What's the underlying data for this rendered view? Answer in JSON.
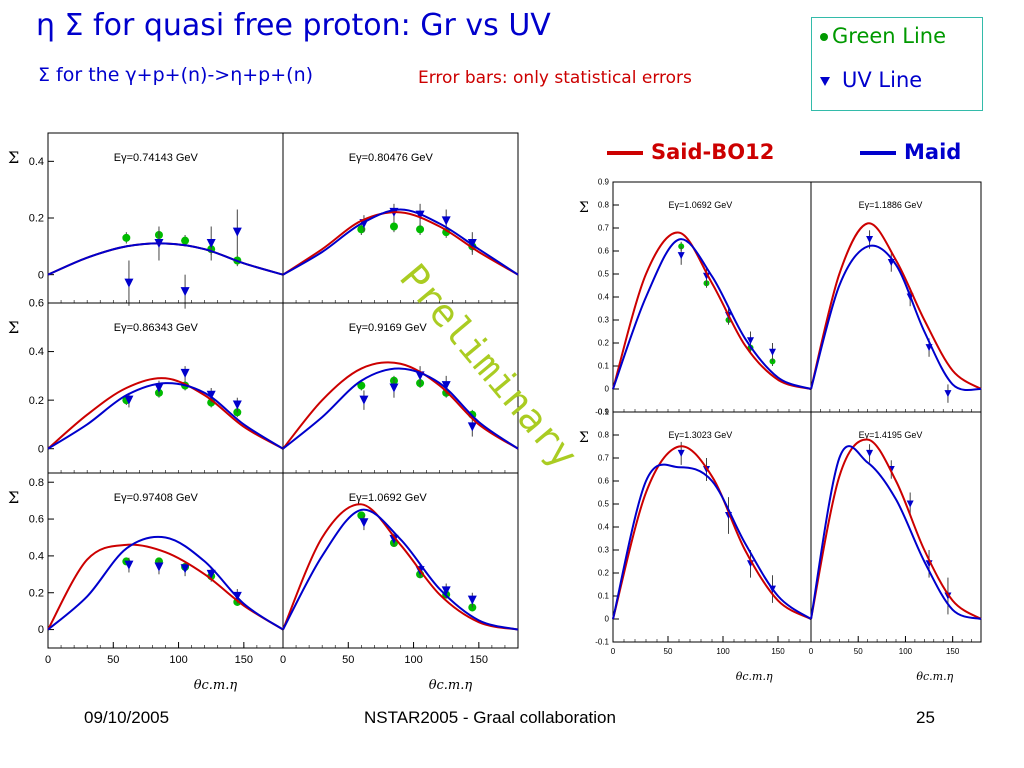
{
  "title": "η  Σ for quasi free proton:  Gr vs UV",
  "subtitle": "Σ for the γ+p+(n)->η+p+(n)",
  "error_note": "Error bars: only statistical errors",
  "legend": {
    "green_label": "Green Line",
    "uv_label": "UV Line"
  },
  "models": {
    "said": "Said-BO12",
    "maid": "Maid"
  },
  "watermark": "Preliminary",
  "footer": {
    "date": "09/10/2005",
    "conference": "NSTAR2005 - Graal collaboration",
    "page": "25"
  },
  "colors": {
    "green": "#00bb00",
    "uv": "#0000cc",
    "said": "#cc0000",
    "maid": "#0000cc"
  },
  "chart_data": [
    {
      "type": "scatter",
      "title": "Eγ=0.74143 GeV",
      "xlabel": "θc.m.η",
      "ylabel": "Σ",
      "xlim": [
        0,
        180
      ],
      "ylim": [
        -0.1,
        0.5
      ],
      "yticks": [
        "0",
        "0.2",
        "0.4"
      ],
      "xticks": [],
      "series": [
        {
          "name": "Green Line",
          "x": [
            60,
            85,
            105,
            125,
            145
          ],
          "y": [
            0.13,
            0.14,
            0.12,
            0.09,
            0.05
          ],
          "err": [
            0.02,
            0.02,
            0.02,
            0.02,
            0.02
          ]
        },
        {
          "name": "UV Line",
          "x": [
            62,
            85,
            105,
            125,
            145
          ],
          "y": [
            -0.03,
            0.11,
            -0.06,
            0.11,
            0.15
          ],
          "err": [
            0.08,
            0.06,
            0.06,
            0.06,
            0.08
          ]
        },
        {
          "name": "Said-BO12",
          "x": [
            0,
            30,
            60,
            90,
            120,
            150,
            180
          ],
          "y": [
            0,
            0.06,
            0.1,
            0.11,
            0.09,
            0.04,
            0
          ]
        },
        {
          "name": "Maid",
          "x": [
            0,
            30,
            60,
            90,
            120,
            150,
            180
          ],
          "y": [
            0,
            0.06,
            0.1,
            0.11,
            0.09,
            0.04,
            0
          ]
        }
      ]
    },
    {
      "type": "scatter",
      "title": "Eγ=0.80476 GeV",
      "xlabel": "θc.m.η",
      "ylabel": "Σ",
      "xlim": [
        0,
        180
      ],
      "ylim": [
        -0.1,
        0.5
      ],
      "yticks": [],
      "xticks": [],
      "series": [
        {
          "name": "Green Line",
          "x": [
            60,
            85,
            105,
            125,
            145
          ],
          "y": [
            0.16,
            0.17,
            0.16,
            0.15,
            0.1
          ],
          "err": [
            0.02,
            0.02,
            0.02,
            0.02,
            0.02
          ]
        },
        {
          "name": "UV Line",
          "x": [
            62,
            85,
            105,
            125,
            145
          ],
          "y": [
            0.18,
            0.22,
            0.21,
            0.19,
            0.11
          ],
          "err": [
            0.03,
            0.03,
            0.04,
            0.04,
            0.04
          ]
        },
        {
          "name": "Said-BO12",
          "x": [
            0,
            30,
            60,
            90,
            120,
            150,
            180
          ],
          "y": [
            0,
            0.09,
            0.19,
            0.22,
            0.17,
            0.08,
            0
          ]
        },
        {
          "name": "Maid",
          "x": [
            0,
            30,
            60,
            90,
            120,
            150,
            180
          ],
          "y": [
            0,
            0.08,
            0.18,
            0.23,
            0.18,
            0.09,
            0
          ]
        }
      ]
    },
    {
      "type": "scatter",
      "title": "Eγ=0.86343 GeV",
      "xlabel": "θc.m.η",
      "ylabel": "Σ",
      "xlim": [
        0,
        180
      ],
      "ylim": [
        -0.1,
        0.6
      ],
      "yticks": [
        "0",
        "0.2",
        "0.4",
        "0.6"
      ],
      "xticks": [],
      "series": [
        {
          "name": "Green Line",
          "x": [
            60,
            85,
            105,
            125,
            145
          ],
          "y": [
            0.2,
            0.23,
            0.26,
            0.19,
            0.15
          ],
          "err": [
            0.02,
            0.02,
            0.02,
            0.02,
            0.02
          ]
        },
        {
          "name": "UV Line",
          "x": [
            62,
            85,
            105,
            125,
            145
          ],
          "y": [
            0.2,
            0.25,
            0.31,
            0.22,
            0.18
          ],
          "err": [
            0.03,
            0.03,
            0.03,
            0.03,
            0.03
          ]
        },
        {
          "name": "Said-BO12",
          "x": [
            0,
            30,
            60,
            90,
            120,
            150,
            180
          ],
          "y": [
            0,
            0.14,
            0.25,
            0.29,
            0.22,
            0.09,
            0
          ]
        },
        {
          "name": "Maid",
          "x": [
            0,
            30,
            60,
            90,
            120,
            150,
            180
          ],
          "y": [
            0,
            0.1,
            0.22,
            0.27,
            0.23,
            0.1,
            0
          ]
        }
      ]
    },
    {
      "type": "scatter",
      "title": "Eγ=0.9169 GeV",
      "xlabel": "θc.m.η",
      "ylabel": "Σ",
      "xlim": [
        0,
        180
      ],
      "ylim": [
        -0.1,
        0.6
      ],
      "yticks": [],
      "xticks": [],
      "series": [
        {
          "name": "Green Line",
          "x": [
            60,
            85,
            105,
            125,
            145
          ],
          "y": [
            0.26,
            0.28,
            0.27,
            0.23,
            0.14
          ],
          "err": [
            0.02,
            0.02,
            0.02,
            0.02,
            0.02
          ]
        },
        {
          "name": "UV Line",
          "x": [
            62,
            85,
            105,
            125,
            145
          ],
          "y": [
            0.2,
            0.25,
            0.3,
            0.26,
            0.09
          ],
          "err": [
            0.04,
            0.04,
            0.04,
            0.04,
            0.04
          ]
        },
        {
          "name": "Said-BO12",
          "x": [
            0,
            30,
            60,
            90,
            120,
            150,
            180
          ],
          "y": [
            0,
            0.2,
            0.33,
            0.35,
            0.26,
            0.1,
            0
          ]
        },
        {
          "name": "Maid",
          "x": [
            0,
            30,
            60,
            90,
            120,
            150,
            180
          ],
          "y": [
            0,
            0.13,
            0.28,
            0.33,
            0.27,
            0.11,
            0
          ]
        }
      ]
    },
    {
      "type": "scatter",
      "title": "Eγ=0.97408 GeV",
      "xlabel": "θc.m.η",
      "ylabel": "Σ",
      "xlim": [
        0,
        180
      ],
      "ylim": [
        -0.1,
        0.85
      ],
      "yticks": [
        "0",
        "0.2",
        "0.4",
        "0.6",
        "0.8"
      ],
      "xticks": [
        "0",
        "50",
        "100",
        "150"
      ],
      "series": [
        {
          "name": "Green Line",
          "x": [
            60,
            85,
            105,
            125,
            145
          ],
          "y": [
            0.37,
            0.37,
            0.34,
            0.29,
            0.15
          ],
          "err": [
            0.02,
            0.02,
            0.02,
            0.02,
            0.02
          ]
        },
        {
          "name": "UV Line",
          "x": [
            62,
            85,
            105,
            125,
            145
          ],
          "y": [
            0.35,
            0.34,
            0.33,
            0.3,
            0.18
          ],
          "err": [
            0.04,
            0.04,
            0.04,
            0.04,
            0.04
          ]
        },
        {
          "name": "Said-BO12",
          "x": [
            0,
            30,
            60,
            90,
            120,
            150,
            180
          ],
          "y": [
            0,
            0.38,
            0.46,
            0.42,
            0.3,
            0.13,
            0
          ]
        },
        {
          "name": "Maid",
          "x": [
            0,
            30,
            60,
            90,
            120,
            150,
            180
          ],
          "y": [
            0,
            0.18,
            0.44,
            0.5,
            0.37,
            0.14,
            0
          ]
        }
      ]
    },
    {
      "type": "scatter",
      "title": "Eγ=1.0692 GeV",
      "xlabel": "θc.m.η",
      "ylabel": "Σ",
      "xlim": [
        0,
        180
      ],
      "ylim": [
        -0.1,
        0.85
      ],
      "yticks": [],
      "xticks": [
        "0",
        "50",
        "100",
        "150"
      ],
      "series": [
        {
          "name": "Green Line",
          "x": [
            60,
            85,
            105,
            125,
            145
          ],
          "y": [
            0.62,
            0.47,
            0.3,
            0.19,
            0.12
          ],
          "err": [
            0.02,
            0.02,
            0.02,
            0.02,
            0.02
          ]
        },
        {
          "name": "UV Line",
          "x": [
            62,
            85,
            105,
            125,
            145
          ],
          "y": [
            0.58,
            0.49,
            0.32,
            0.21,
            0.16
          ],
          "err": [
            0.04,
            0.04,
            0.04,
            0.04,
            0.04
          ]
        },
        {
          "name": "Said-BO12",
          "x": [
            0,
            30,
            60,
            90,
            120,
            150,
            180
          ],
          "y": [
            0,
            0.5,
            0.68,
            0.46,
            0.19,
            0.04,
            0
          ]
        },
        {
          "name": "Maid",
          "x": [
            0,
            30,
            60,
            90,
            120,
            150,
            180
          ],
          "y": [
            0,
            0.4,
            0.65,
            0.49,
            0.22,
            0.05,
            0
          ]
        }
      ]
    },
    {
      "type": "scatter",
      "title": "Eγ=1.0692 GeV",
      "xlabel": "θc.m.η",
      "ylabel": "Σ",
      "xlim": [
        0,
        180
      ],
      "ylim": [
        -0.1,
        0.9
      ],
      "yticks": [
        "-0.1",
        "0",
        "0.1",
        "0.2",
        "0.3",
        "0.4",
        "0.5",
        "0.6",
        "0.7",
        "0.8",
        "0.9"
      ],
      "xticks": [],
      "series": [
        {
          "name": "Green Line",
          "x": [
            62,
            85,
            105,
            125,
            145
          ],
          "y": [
            0.62,
            0.46,
            0.3,
            0.18,
            0.12
          ],
          "err": [
            0.02,
            0.02,
            0.02,
            0.02,
            0.02
          ]
        },
        {
          "name": "UV Line",
          "x": [
            62,
            85,
            105,
            125,
            145
          ],
          "y": [
            0.58,
            0.49,
            0.32,
            0.21,
            0.16
          ],
          "err": [
            0.04,
            0.04,
            0.04,
            0.04,
            0.04
          ]
        },
        {
          "name": "Said-BO12",
          "x": [
            0,
            30,
            60,
            90,
            120,
            150,
            180
          ],
          "y": [
            0,
            0.5,
            0.68,
            0.46,
            0.19,
            0.04,
            0
          ]
        },
        {
          "name": "Maid",
          "x": [
            0,
            30,
            60,
            90,
            120,
            150,
            180
          ],
          "y": [
            0,
            0.4,
            0.65,
            0.49,
            0.22,
            0.05,
            0
          ]
        }
      ]
    },
    {
      "type": "scatter",
      "title": "Eγ=1.1886 GeV",
      "xlabel": "θc.m.η",
      "ylabel": "Σ",
      "xlim": [
        0,
        180
      ],
      "ylim": [
        -0.1,
        0.9
      ],
      "yticks": [],
      "xticks": [],
      "series": [
        {
          "name": "UV Line",
          "x": [
            62,
            85,
            105,
            125,
            145
          ],
          "y": [
            0.65,
            0.55,
            0.4,
            0.18,
            -0.02
          ],
          "err": [
            0.04,
            0.04,
            0.04,
            0.04,
            0.04
          ]
        },
        {
          "name": "Said-BO12",
          "x": [
            0,
            30,
            60,
            90,
            120,
            150,
            180
          ],
          "y": [
            0,
            0.5,
            0.72,
            0.56,
            0.3,
            0.08,
            0
          ]
        },
        {
          "name": "Maid",
          "x": [
            0,
            30,
            60,
            90,
            120,
            150,
            180
          ],
          "y": [
            0,
            0.45,
            0.62,
            0.54,
            0.25,
            0.02,
            0
          ]
        }
      ]
    },
    {
      "type": "scatter",
      "title": "Eγ=1.3023 GeV",
      "xlabel": "θc.m.η",
      "ylabel": "Σ",
      "xlim": [
        0,
        180
      ],
      "ylim": [
        -0.1,
        0.9
      ],
      "yticks": [
        "-0.1",
        "0",
        "0.1",
        "0.2",
        "0.3",
        "0.4",
        "0.5",
        "0.6",
        "0.7",
        "0.8",
        "0.9"
      ],
      "xticks": [
        "0",
        "50",
        "100",
        "150"
      ],
      "series": [
        {
          "name": "UV Line",
          "x": [
            62,
            85,
            105,
            125,
            145
          ],
          "y": [
            0.72,
            0.65,
            0.45,
            0.24,
            0.13
          ],
          "err": [
            0.05,
            0.05,
            0.08,
            0.06,
            0.06
          ]
        },
        {
          "name": "Said-BO12",
          "x": [
            0,
            30,
            60,
            90,
            120,
            150,
            180
          ],
          "y": [
            0,
            0.55,
            0.75,
            0.62,
            0.3,
            0.08,
            0
          ]
        },
        {
          "name": "Maid",
          "x": [
            0,
            30,
            60,
            90,
            120,
            150,
            180
          ],
          "y": [
            0,
            0.6,
            0.66,
            0.6,
            0.33,
            0.1,
            0
          ]
        }
      ]
    },
    {
      "type": "scatter",
      "title": "Eγ=1.4195 GeV",
      "xlabel": "θc.m.η",
      "ylabel": "Σ",
      "xlim": [
        0,
        180
      ],
      "ylim": [
        -0.1,
        0.9
      ],
      "yticks": [],
      "xticks": [
        "0",
        "50",
        "100",
        "150"
      ],
      "series": [
        {
          "name": "UV Line",
          "x": [
            62,
            85,
            105,
            125,
            145
          ],
          "y": [
            0.72,
            0.65,
            0.5,
            0.24,
            0.1
          ],
          "err": [
            0.04,
            0.04,
            0.05,
            0.06,
            0.08
          ]
        },
        {
          "name": "Said-BO12",
          "x": [
            0,
            30,
            60,
            90,
            120,
            150,
            180
          ],
          "y": [
            0,
            0.62,
            0.78,
            0.6,
            0.3,
            0.08,
            0
          ]
        },
        {
          "name": "Maid",
          "x": [
            0,
            30,
            60,
            90,
            120,
            150,
            180
          ],
          "y": [
            0,
            0.7,
            0.68,
            0.52,
            0.25,
            0.04,
            0
          ]
        }
      ]
    }
  ]
}
